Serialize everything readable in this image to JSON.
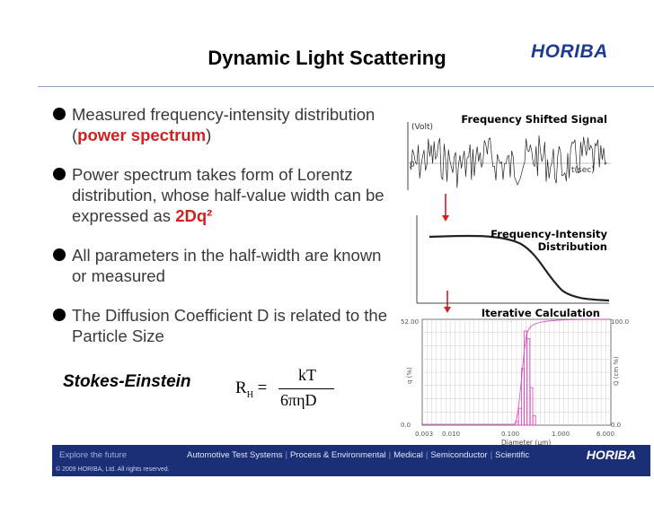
{
  "slide": {
    "title": "Dynamic Light Scattering",
    "logo": "HORIBA",
    "bullets": [
      {
        "pre": "Measured frequency-intensity distribution (",
        "em": "power spectrum",
        "post": ")"
      },
      {
        "pre": "Power spectrum takes form of Lorentz distribution, whose half-value width can be expressed as ",
        "em": "2Dq²",
        "post": ""
      },
      {
        "pre": "All parameters in the half-width are known or measured",
        "em": "",
        "post": ""
      },
      {
        "pre": "The Diffusion Coefficient D is related to the Particle Size",
        "em": "",
        "post": ""
      }
    ],
    "equation_label": "Stokes-Einstein",
    "equation": {
      "lhs": "R",
      "lhs_sub": "H",
      "eq": "=",
      "numerator": "kT",
      "denominator": "6πηD"
    }
  },
  "figure": {
    "signal": {
      "label": "Frequency Shifted Signal",
      "ylabel": "(Volt)",
      "zero": "0",
      "xlabel": "t(sec)"
    },
    "spectrum": {
      "label_line1": "Frequency-Intensity",
      "label_line2": "Distribution"
    },
    "calc": {
      "label": "Iterative Calculation",
      "y_left_max": "52.00",
      "y_left_min": "0.0",
      "y_left_label": "q (%)",
      "y_right_label": "Q (cm %)",
      "y_right_max": "100.0",
      "y_right_min": "0.0",
      "x_ticks": [
        "0.003",
        "0.010",
        "0.100",
        "1.000",
        "6.000"
      ],
      "x_label": "Diameter (µm)"
    },
    "arrow_color": "#d42020",
    "histogram_color": "#e040c0"
  },
  "footer": {
    "tagline": "Explore the future",
    "links": [
      "Automotive Test Systems",
      "Process & Environmental",
      "Medical",
      "Semiconductor",
      "Scientific"
    ],
    "logo": "HORIBA",
    "copyright": "© 2009 HORIBA, Ltd. All rights reserved."
  }
}
